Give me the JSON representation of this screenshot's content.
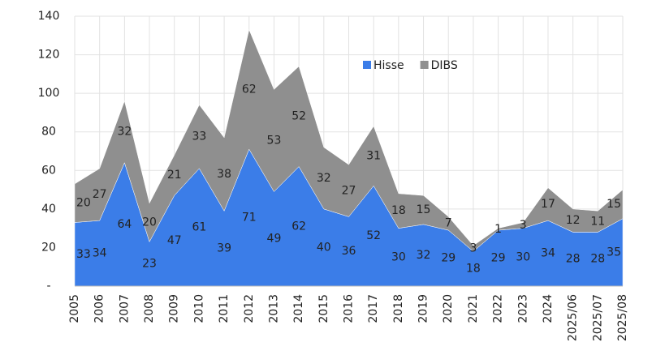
{
  "chart_data": {
    "type": "stacked_area",
    "categories": [
      "2005",
      "2006",
      "2007",
      "2008",
      "2009",
      "2010",
      "2011",
      "2012",
      "2013",
      "2014",
      "2015",
      "2016",
      "2017",
      "2018",
      "2019",
      "2020",
      "2021",
      "2022",
      "2023",
      "2024",
      "2025/06",
      "2025/07",
      "2025/08"
    ],
    "series": [
      {
        "name": "Hisse",
        "color": "#3b7de8",
        "values": [
          33,
          34,
          64,
          23,
          47,
          61,
          39,
          71,
          49,
          62,
          40,
          36,
          52,
          30,
          32,
          29,
          18,
          29,
          30,
          34,
          28,
          28,
          35
        ]
      },
      {
        "name": "DIBS",
        "color": "#8f8f8f",
        "values": [
          20,
          27,
          32,
          20,
          21,
          33,
          38,
          62,
          53,
          52,
          32,
          27,
          31,
          18,
          15,
          7,
          3,
          1,
          3,
          17,
          12,
          11,
          15
        ]
      }
    ],
    "ylim": [
      0,
      140
    ],
    "yticks": [
      {
        "value": 0,
        "label": "-"
      },
      20,
      40,
      60,
      80,
      100,
      120,
      140
    ],
    "grid": true,
    "legend": "top"
  }
}
